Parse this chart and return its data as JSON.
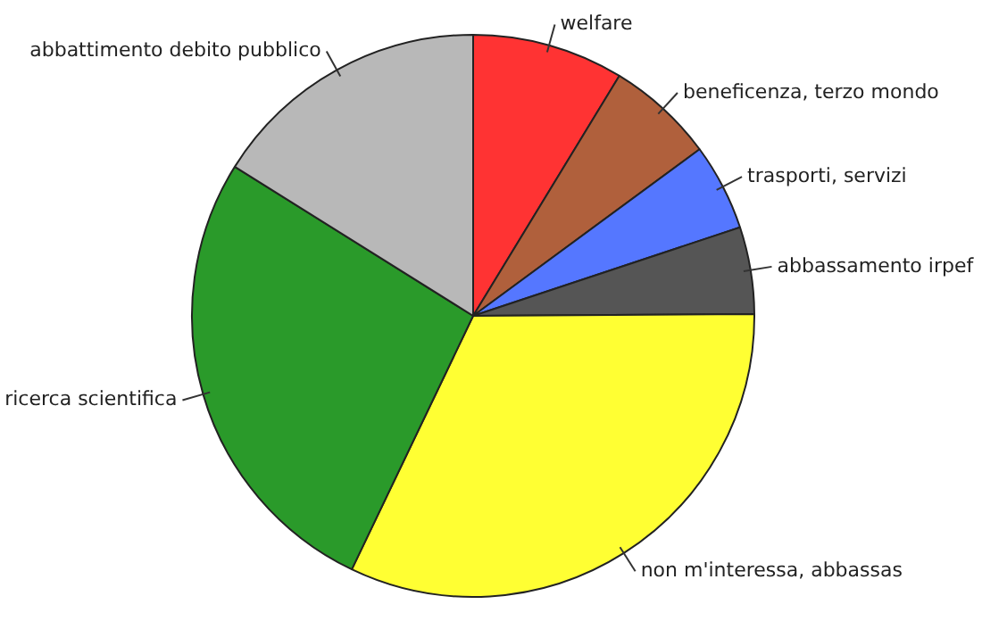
{
  "chart_data": {
    "type": "pie",
    "categories": [
      "welfare",
      "beneficenza, terzo mondo",
      "trasporti, servizi",
      "abbassamento irpef",
      "non m'interessa, abbassas",
      "ricerca scientifica",
      "abbattimento debito pubblico"
    ],
    "values": [
      8.7,
      6.2,
      5,
      5,
      32.2,
      26.8,
      16.1
    ],
    "colors": [
      "#ff3333",
      "#b0603c",
      "#5577ff",
      "#555555",
      "#ffff33",
      "#2a9a2a",
      "#b8b8b8"
    ],
    "legend": false
  }
}
